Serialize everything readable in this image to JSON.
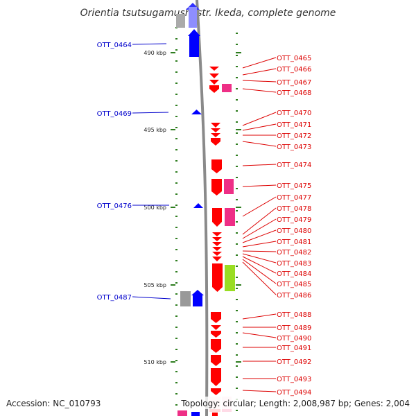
{
  "title": "Orientia tsutsugamushi str. Ikeda, complete genome",
  "footer": {
    "accession": "Accession: NC_010793",
    "topology": "Topology: circular; Length: 2,008,987 bp; Genes: 2,004"
  },
  "colors": {
    "backbone": "#8a8a8a",
    "tick": "#2e7d1f",
    "forward_strand": "#0000ff",
    "reverse_strand": "#ff0000",
    "pink": "#ee2f86",
    "lime": "#99dd22",
    "grey": "#999999",
    "left_label": "#0000cc",
    "right_label": "#dd0000"
  },
  "scale_labels": [
    "490 kbp",
    "495 kbp",
    "500 kbp",
    "505 kbp",
    "510 kbp"
  ],
  "left_genes": [
    "OTT_0464",
    "OTT_0469",
    "OTT_0476",
    "OTT_0487"
  ],
  "right_genes": [
    "OTT_0465",
    "OTT_0466",
    "OTT_0467",
    "OTT_0468",
    "OTT_0470",
    "OTT_0471",
    "OTT_0472",
    "OTT_0473",
    "OTT_0474",
    "OTT_0475",
    "OTT_0477",
    "OTT_0478",
    "OTT_0479",
    "OTT_0480",
    "OTT_0481",
    "OTT_0482",
    "OTT_0483",
    "OTT_0484",
    "OTT_0485",
    "OTT_0486",
    "OTT_0488",
    "OTT_0489",
    "OTT_0490",
    "OTT_0491",
    "OTT_0492",
    "OTT_0493",
    "OTT_0494"
  ]
}
